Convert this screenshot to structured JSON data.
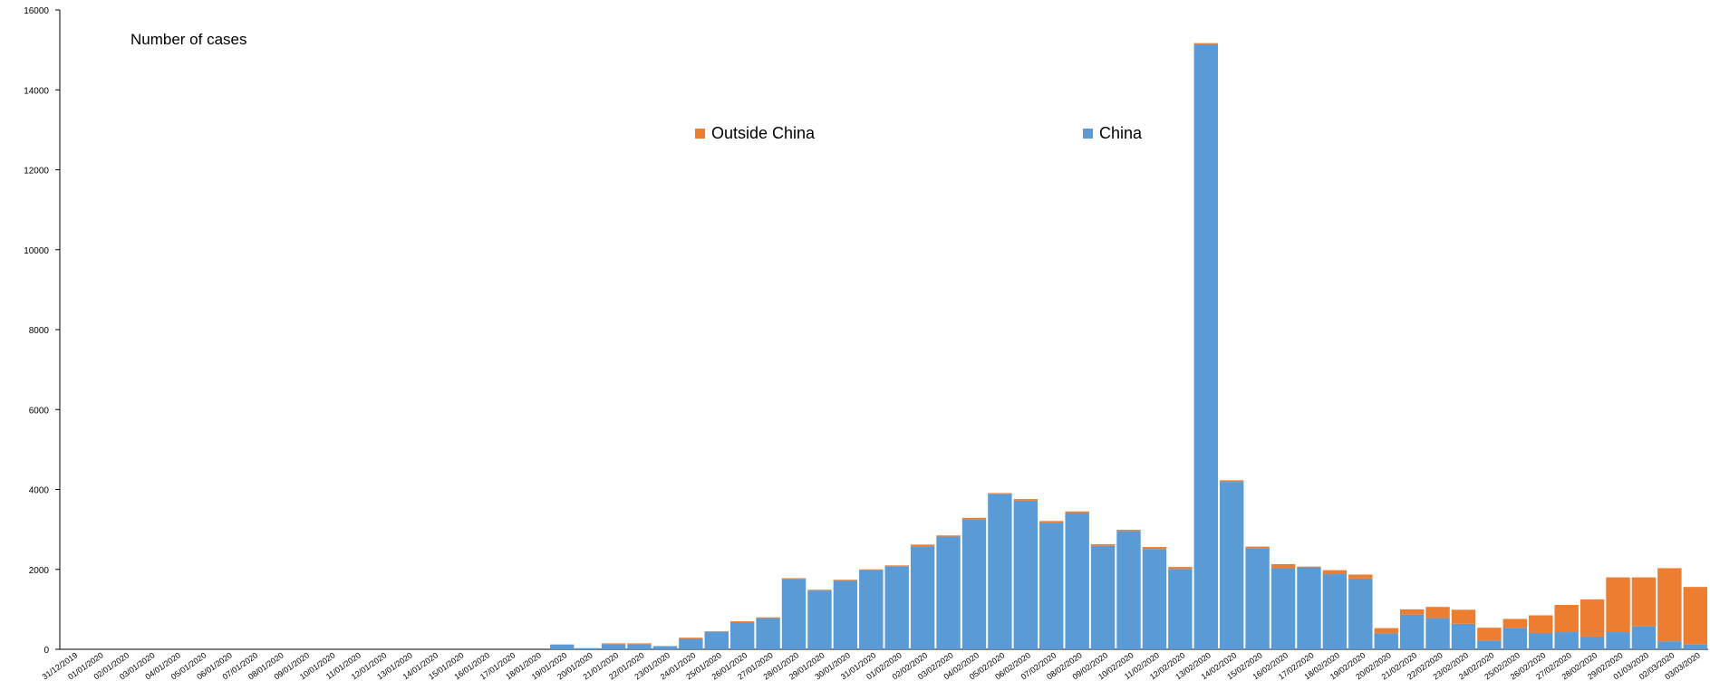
{
  "chart_data": {
    "type": "bar",
    "stacked": true,
    "ylabel": "Number of cases",
    "ylim": [
      0,
      16000
    ],
    "y_ticks": [
      0,
      2000,
      4000,
      6000,
      8000,
      10000,
      12000,
      14000,
      16000
    ],
    "grid": false,
    "legend_position": "top-center",
    "categories": [
      "31/12/2019",
      "01/01/2020",
      "02/01/2020",
      "03/01/2020",
      "04/01/2020",
      "05/01/2020",
      "06/01/2020",
      "07/01/2020",
      "08/01/2020",
      "09/01/2020",
      "10/01/2020",
      "11/01/2020",
      "12/01/2020",
      "13/01/2020",
      "14/01/2020",
      "15/01/2020",
      "16/01/2020",
      "17/01/2020",
      "18/01/2020",
      "19/01/2020",
      "20/01/2020",
      "21/01/2020",
      "22/01/2020",
      "23/01/2020",
      "24/01/2020",
      "25/01/2020",
      "26/01/2020",
      "27/01/2020",
      "28/01/2020",
      "29/01/2020",
      "30/01/2020",
      "31/01/2020",
      "01/02/2020",
      "02/02/2020",
      "03/02/2020",
      "04/02/2020",
      "05/02/2020",
      "06/02/2020",
      "07/02/2020",
      "08/02/2020",
      "09/02/2020",
      "10/02/2020",
      "11/02/2020",
      "12/02/2020",
      "13/02/2020",
      "14/02/2020",
      "15/02/2020",
      "16/02/2020",
      "17/02/2020",
      "18/02/2020",
      "19/02/2020",
      "20/02/2020",
      "21/02/2020",
      "22/02/2020",
      "23/02/2020",
      "24/02/2020",
      "25/02/2020",
      "26/02/2020",
      "27/02/2020",
      "28/02/2020",
      "29/02/2020",
      "01/03/2020",
      "02/03/2020",
      "03/03/2020"
    ],
    "series": [
      {
        "name": "China",
        "color": "#5B9BD5",
        "values": [
          0,
          0,
          0,
          0,
          0,
          0,
          0,
          0,
          0,
          0,
          0,
          0,
          0,
          0,
          0,
          0,
          0,
          0,
          0,
          120,
          30,
          130,
          130,
          80,
          260,
          430,
          680,
          780,
          1760,
          1470,
          1720,
          1980,
          2080,
          2580,
          2820,
          3250,
          3880,
          3720,
          3170,
          3410,
          2590,
          2960,
          2510,
          2010,
          15140,
          4190,
          2530,
          2030,
          2050,
          1880,
          1770,
          400,
          870,
          780,
          640,
          220,
          540,
          410,
          430,
          320,
          430,
          570,
          200,
          120
        ]
      },
      {
        "name": "Outside China",
        "color": "#ED7D31",
        "values": [
          0,
          0,
          0,
          0,
          0,
          0,
          0,
          0,
          0,
          0,
          0,
          0,
          0,
          0,
          0,
          0,
          0,
          0,
          0,
          0,
          0,
          20,
          20,
          0,
          30,
          20,
          20,
          20,
          20,
          20,
          20,
          20,
          20,
          40,
          30,
          40,
          30,
          40,
          40,
          40,
          40,
          30,
          50,
          50,
          30,
          40,
          40,
          100,
          20,
          100,
          100,
          130,
          130,
          280,
          350,
          320,
          220,
          440,
          680,
          930,
          1370,
          1230,
          1830,
          1440
        ]
      }
    ]
  },
  "legend": {
    "outside_china": "Outside China",
    "china": "China"
  }
}
